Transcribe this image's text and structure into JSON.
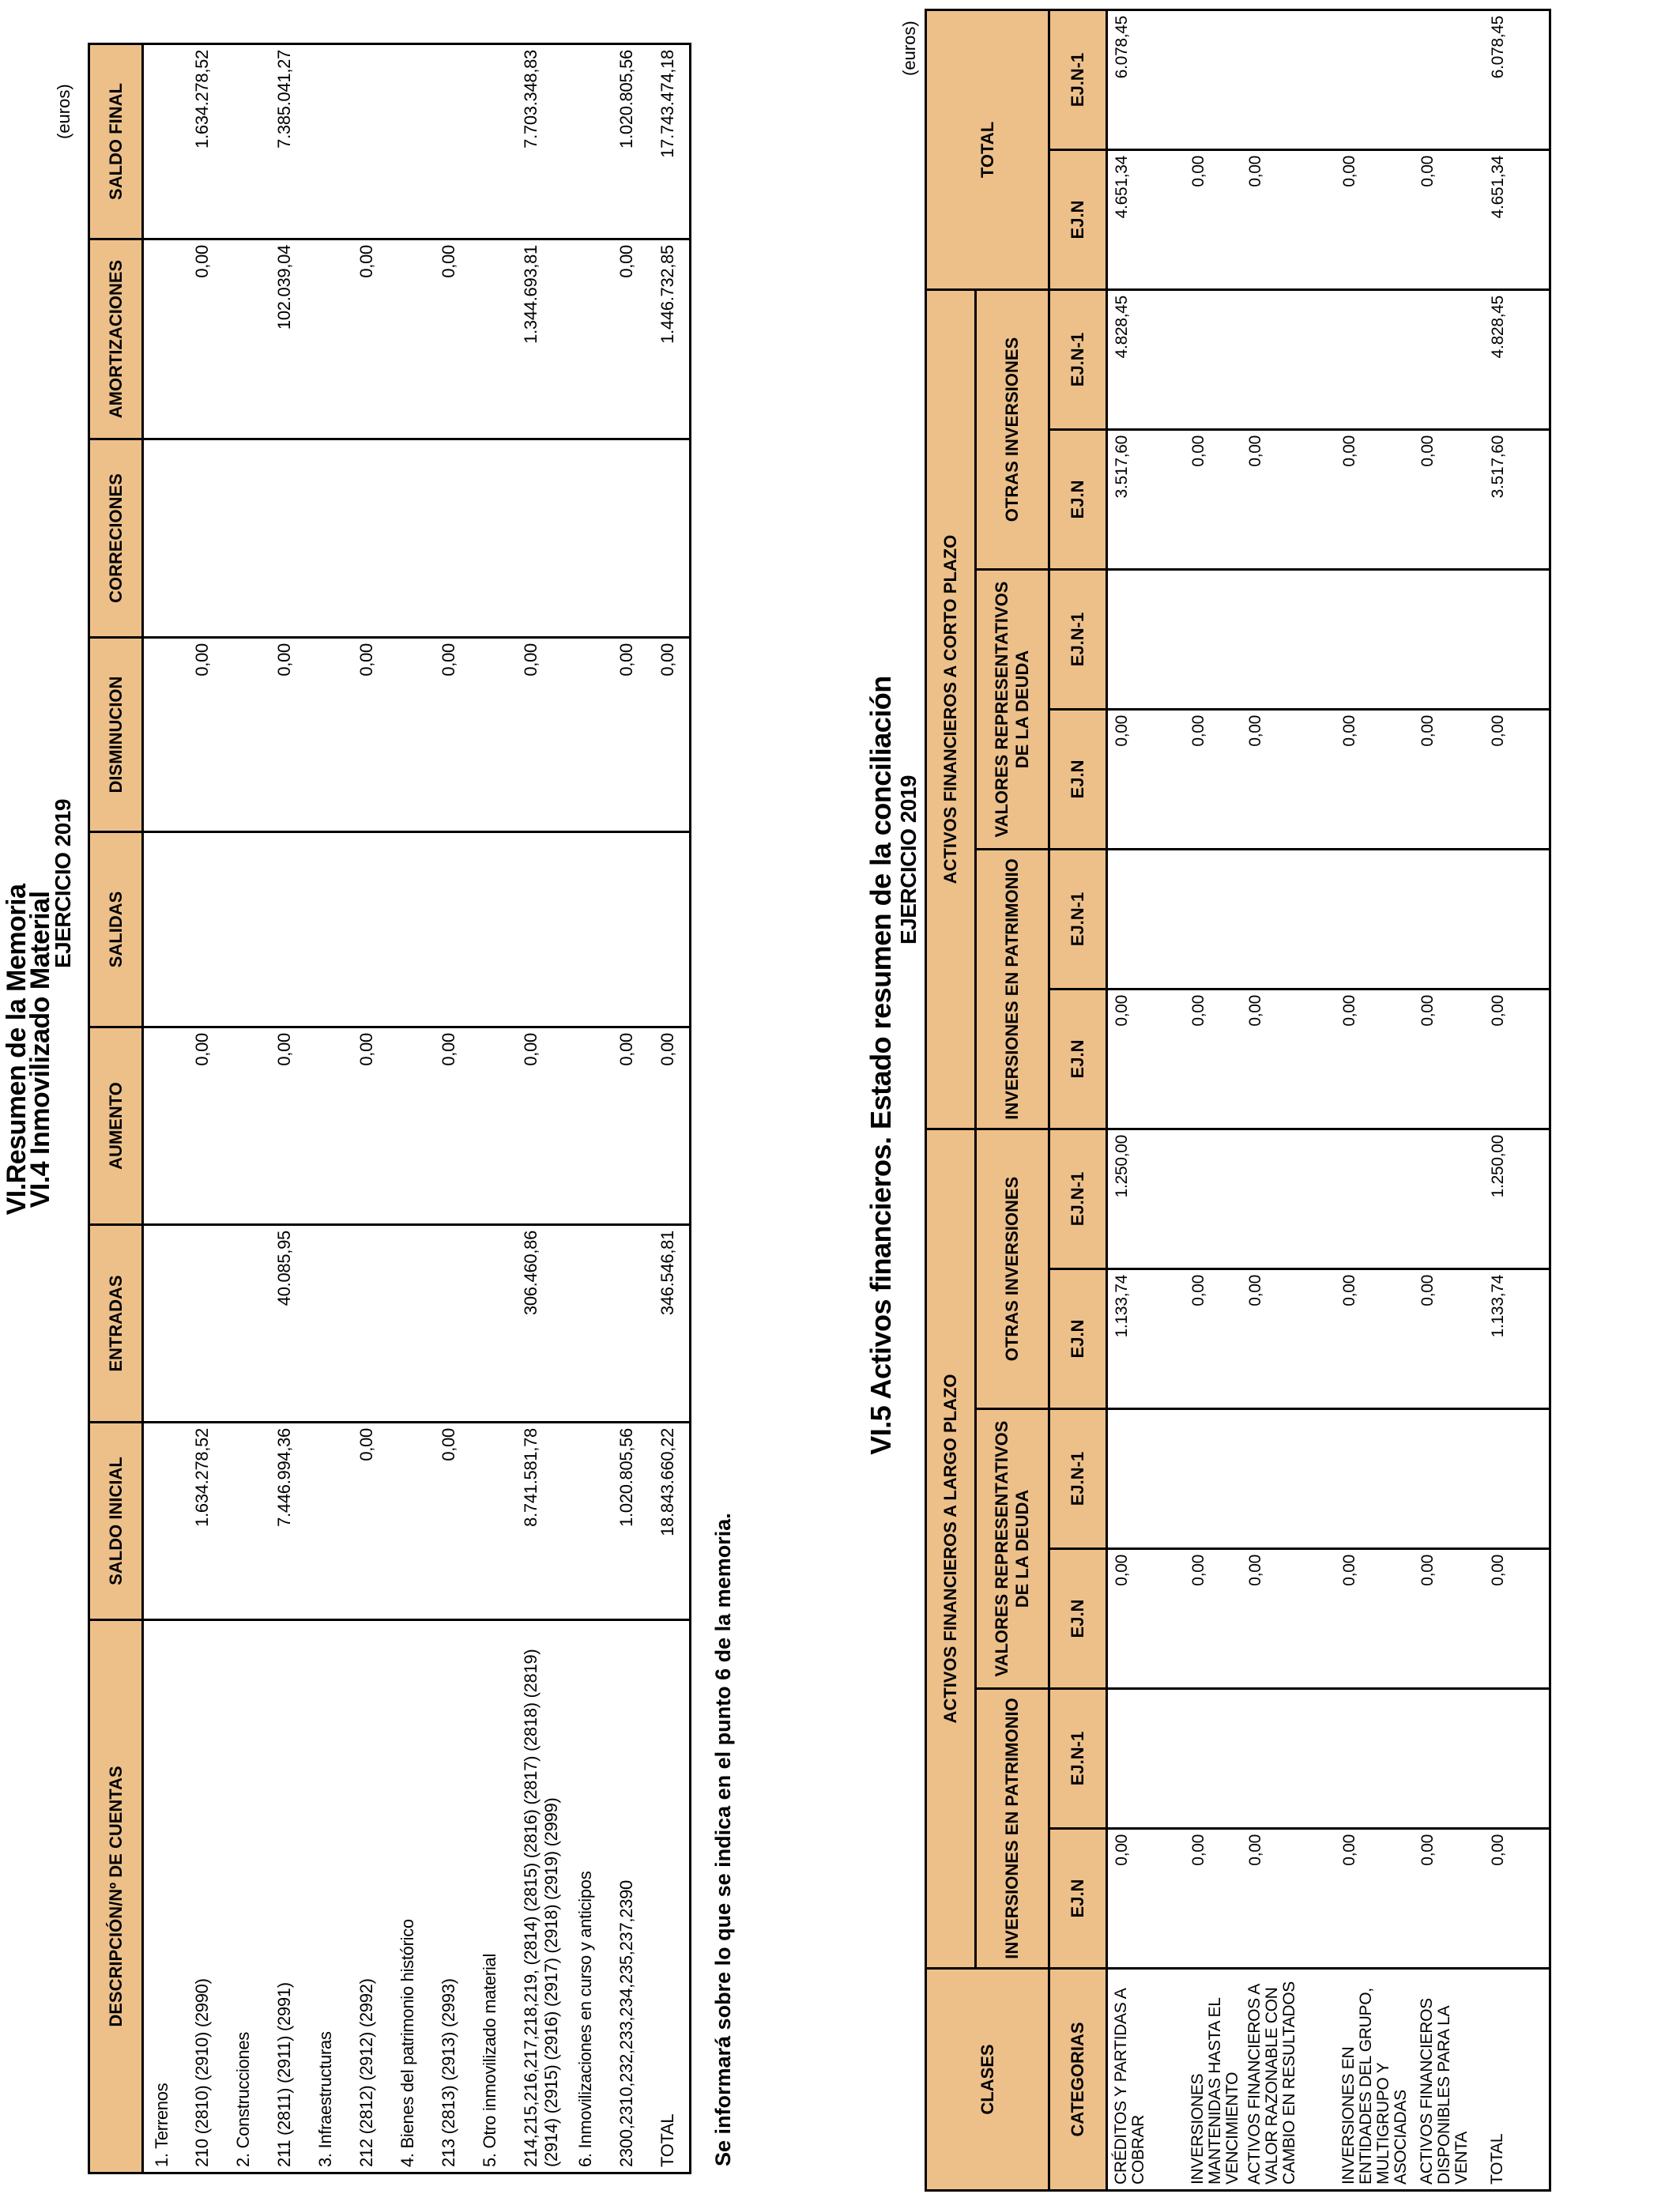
{
  "section1": {
    "title_line1": "VI.Resumen de la Memoria",
    "title_line2": "VI.4 Inmovilizado Material",
    "title_line3": "EJERCICIO 2019",
    "units": "(euros)",
    "headers": [
      "DESCRIPCIÓN/Nº DE CUENTAS",
      "SALDO INICIAL",
      "ENTRADAS",
      "AUMENTO",
      "SALIDAS",
      "DISMINUCION",
      "CORRECIONES",
      "AMORTIZACIONES",
      "SALDO FINAL"
    ],
    "rows": [
      {
        "desc": "1. Terrenos",
        "values": [
          "",
          "",
          "",
          "",
          "",
          "",
          "",
          ""
        ]
      },
      {
        "desc": "210 (2810) (2910) (2990)",
        "values": [
          "1.634.278,52",
          "",
          "0,00",
          "",
          "0,00",
          "",
          "0,00",
          "1.634.278,52"
        ]
      },
      {
        "desc": "2. Construcciones",
        "values": [
          "",
          "",
          "",
          "",
          "",
          "",
          "",
          ""
        ]
      },
      {
        "desc": "211 (2811) (2911) (2991)",
        "values": [
          "7.446.994,36",
          "40.085,95",
          "0,00",
          "",
          "0,00",
          "",
          "102.039,04",
          "7.385.041,27"
        ]
      },
      {
        "desc": "3. Infraestructuras",
        "values": [
          "",
          "",
          "",
          "",
          "",
          "",
          "",
          ""
        ]
      },
      {
        "desc": "212 (2812) (2912) (2992)",
        "values": [
          "0,00",
          "",
          "0,00",
          "",
          "0,00",
          "",
          "0,00",
          ""
        ]
      },
      {
        "desc": "4. Bienes del patrimonio histórico",
        "values": [
          "",
          "",
          "",
          "",
          "",
          "",
          "",
          ""
        ]
      },
      {
        "desc": "213 (2813) (2913) (2993)",
        "values": [
          "0,00",
          "",
          "0,00",
          "",
          "0,00",
          "",
          "0,00",
          ""
        ]
      },
      {
        "desc": "5. Otro inmovilizado material",
        "values": [
          "",
          "",
          "",
          "",
          "",
          "",
          "",
          ""
        ]
      },
      {
        "desc": "214,215,216,217,218,219, (2814) (2815) (2816) (2817) (2818) (2819) (2914) (2915) (2916) (2917) (2918) (2919) (2999)",
        "values": [
          "8.741.581,78",
          "306.460,86",
          "0,00",
          "",
          "0,00",
          "",
          "1.344.693,81",
          "7.703.348,83"
        ]
      },
      {
        "desc": "6. Inmovilizaciones en curso y anticipos",
        "values": [
          "",
          "",
          "",
          "",
          "",
          "",
          "",
          ""
        ]
      },
      {
        "desc": "2300,2310,232,233,234,235,237,2390",
        "values": [
          "1.020.805,56",
          "",
          "0,00",
          "",
          "0,00",
          "",
          "0,00",
          "1.020.805,56"
        ]
      },
      {
        "desc": "TOTAL",
        "values": [
          "18.843.660,22",
          "346.546,81",
          "0,00",
          "",
          "0,00",
          "",
          "1.446.732,85",
          "17.743.474,18"
        ]
      }
    ],
    "note": "Se informará sobre lo que se indica en el punto 6 de la memoria."
  },
  "section2": {
    "title": "VI.5 Activos financieros. Estado resumen de la conciliación",
    "subtitle": "EJERCICIO 2019",
    "units": "(euros)",
    "clases_label": "CLASES",
    "categorias_label": "CATEGORIAS",
    "group_long": "ACTIVOS FINANCIEROS A LARGO PLAZO",
    "group_short": "ACTIVOS FINANCIEROS A CORTO PLAZO",
    "total_label": "TOTAL",
    "subgroups": [
      "INVERSIONES EN PATRIMONIO",
      "VALORES REPRESENTATIVOS DE LA DEUDA",
      "OTRAS INVERSIONES",
      "INVERSIONES EN PATRIMONIO",
      "VALORES REPRESENTATIVOS DE LA DEUDA",
      "OTRAS INVERSIONES"
    ],
    "period_labels": [
      "EJ.N",
      "EJ.N-1"
    ],
    "rows": [
      {
        "category": "CRÉDITOS Y PARTIDAS A COBRAR",
        "values": [
          "0,00",
          "",
          "0,00",
          "",
          "1.133,74",
          "1.250,00",
          "0,00",
          "",
          "0,00",
          "",
          "3.517,60",
          "4.828,45",
          "4.651,34",
          "6.078,45"
        ]
      },
      {
        "category": "INVERSIONES MANTENIDAS HASTA EL VENCIMIENTO",
        "values": [
          "0,00",
          "",
          "0,00",
          "",
          "0,00",
          "",
          "0,00",
          "",
          "0,00",
          "",
          "0,00",
          "",
          "0,00",
          ""
        ]
      },
      {
        "category": "ACTIVOS FINANCIEROS A VALOR RAZONABLE CON CAMBIO EN RESULTADOS",
        "values": [
          "0,00",
          "",
          "0,00",
          "",
          "0,00",
          "",
          "0,00",
          "",
          "0,00",
          "",
          "0,00",
          "",
          "0,00",
          ""
        ]
      },
      {
        "category": "INVERSIONES EN ENTIDADES DEL GRUPO, MULTIGRUPO Y ASOCIADAS",
        "values": [
          "0,00",
          "",
          "0,00",
          "",
          "0,00",
          "",
          "0,00",
          "",
          "0,00",
          "",
          "0,00",
          "",
          "0,00",
          ""
        ]
      },
      {
        "category": "ACTIVOS FINANCIEROS DISPONIBLES PARA LA VENTA",
        "values": [
          "0,00",
          "",
          "0,00",
          "",
          "0,00",
          "",
          "0,00",
          "",
          "0,00",
          "",
          "0,00",
          "",
          "0,00",
          ""
        ]
      },
      {
        "category": "TOTAL",
        "values": [
          "0,00",
          "",
          "0,00",
          "",
          "1.133,74",
          "1.250,00",
          "0,00",
          "",
          "0,00",
          "",
          "3.517,60",
          "4.828,45",
          "4.651,34",
          "6.078,45"
        ]
      }
    ]
  },
  "colors": {
    "header_fill": "#EDC08A",
    "border": "#000000"
  }
}
